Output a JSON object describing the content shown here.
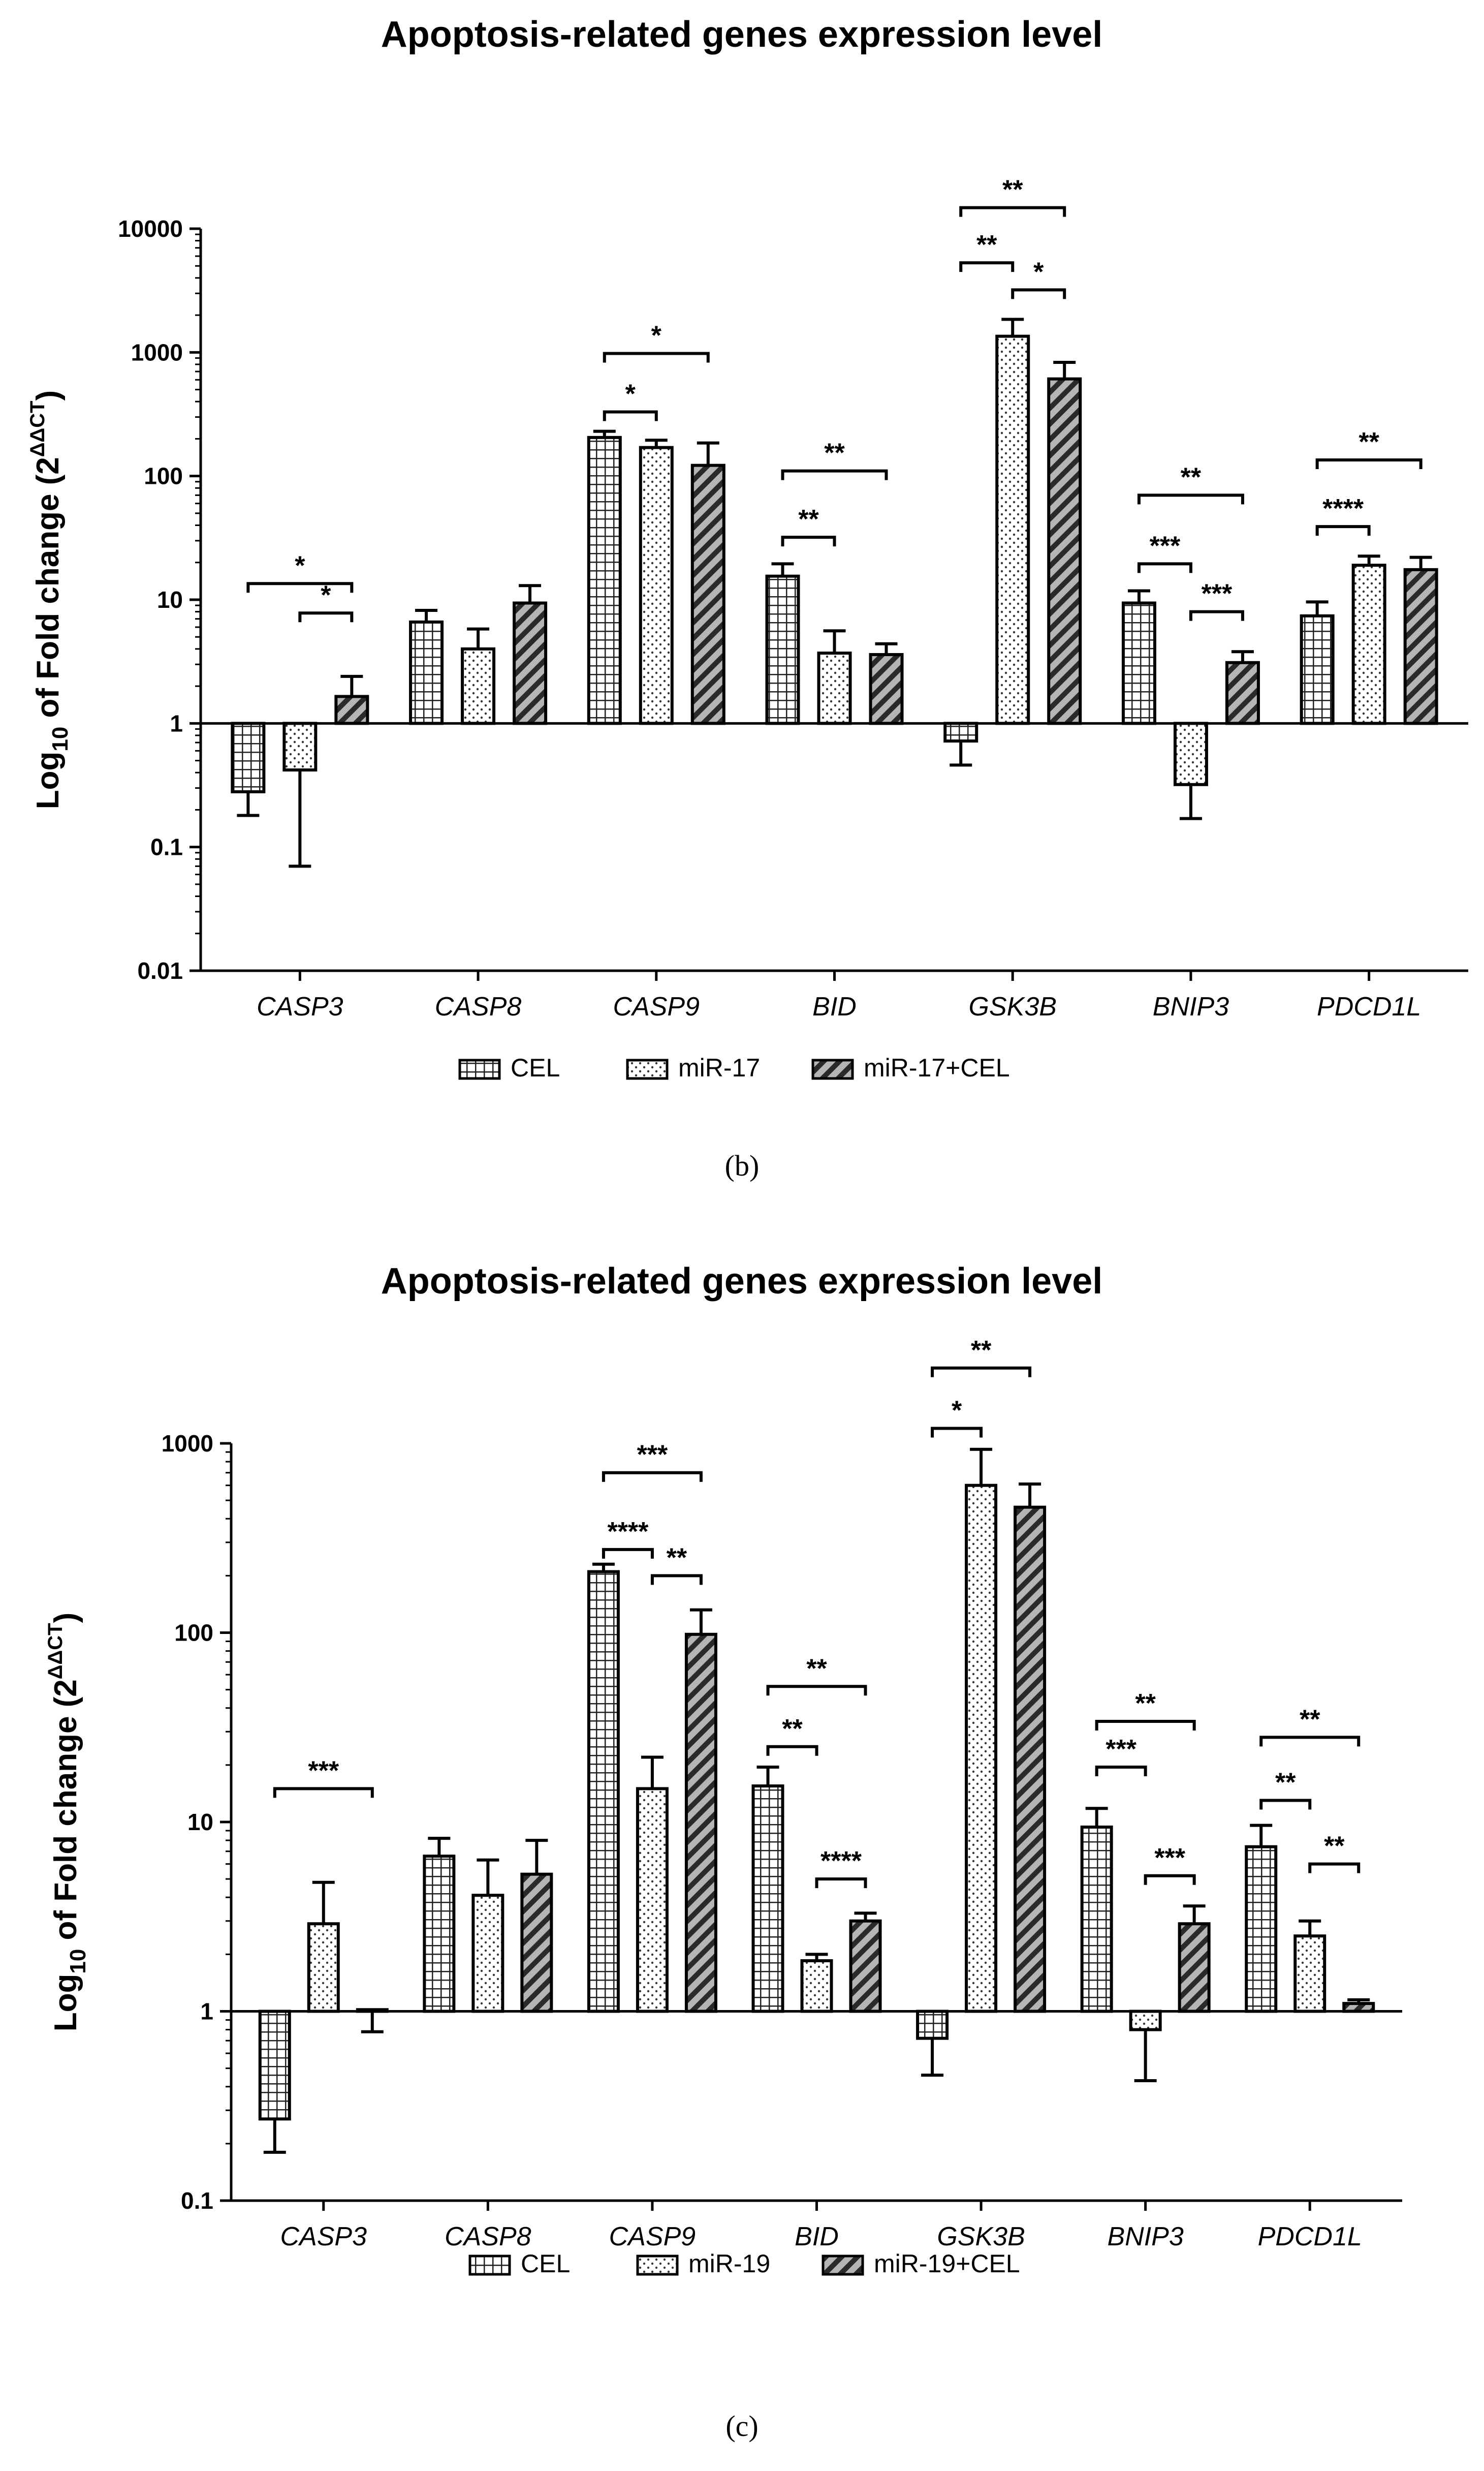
{
  "chart_data": [
    {
      "type": "bar",
      "title": "Apoptosis-related genes expression level",
      "ylabel_pre": "Log",
      "ylabel_sub": "10",
      "ylabel_mid": " of Fold change (2",
      "ylabel_sup": "ΔΔCT",
      "ylabel_post": ")",
      "yscale": "log",
      "ylim": [
        0.01,
        10000
      ],
      "yticks": [
        {
          "value": 10000,
          "label": "10000"
        },
        {
          "value": 1000,
          "label": "1000"
        },
        {
          "value": 100,
          "label": "100"
        },
        {
          "value": 10,
          "label": "10"
        },
        {
          "value": 1,
          "label": "1"
        },
        {
          "value": 0.1,
          "label": "0.1"
        },
        {
          "value": 0.01,
          "label": "0.01"
        }
      ],
      "baseline": 1,
      "categories": [
        "CASP3",
        "CASP8",
        "CASP9",
        "BID",
        "GSK3B",
        "BNIP3",
        "PDCD1L"
      ],
      "series": [
        {
          "name": "CEL",
          "pattern": "grid",
          "values": [
            0.28,
            6.6,
            205,
            15.5,
            0.72,
            9.4,
            7.4
          ],
          "err": [
            0.18,
            8.2,
            230,
            19.5,
            0.46,
            11.8,
            9.6
          ]
        },
        {
          "name": "miR-17",
          "pattern": "dots",
          "values": [
            0.42,
            4.0,
            170,
            3.7,
            1350,
            0.32,
            19
          ],
          "err": [
            0.07,
            5.8,
            195,
            5.6,
            1850,
            0.17,
            22.5
          ]
        },
        {
          "name": "miR-17+CEL",
          "pattern": "hatch",
          "values": [
            1.65,
            9.4,
            122,
            3.6,
            610,
            3.1,
            17.5
          ],
          "err": [
            2.4,
            13,
            185,
            4.4,
            830,
            3.8,
            22
          ]
        }
      ],
      "significance": [
        {
          "cat": 0,
          "from": 0,
          "to": 2,
          "y": 13.5,
          "label": "*"
        },
        {
          "cat": 0,
          "from": 1,
          "to": 2,
          "y": 7.8,
          "label": "*"
        },
        {
          "cat": 2,
          "from": 0,
          "to": 1,
          "y": 330,
          "label": "*"
        },
        {
          "cat": 2,
          "from": 0,
          "to": 2,
          "y": 980,
          "label": "*"
        },
        {
          "cat": 3,
          "from": 0,
          "to": 1,
          "y": 32,
          "label": "**"
        },
        {
          "cat": 3,
          "from": 0,
          "to": 2,
          "y": 110,
          "label": "**"
        },
        {
          "cat": 4,
          "from": 0,
          "to": 1,
          "y": 5300,
          "label": "**"
        },
        {
          "cat": 4,
          "from": 0,
          "to": 2,
          "y": 14800,
          "label": "**"
        },
        {
          "cat": 4,
          "from": 1,
          "to": 2,
          "y": 3200,
          "label": "*"
        },
        {
          "cat": 5,
          "from": 0,
          "to": 1,
          "y": 19.5,
          "label": "***"
        },
        {
          "cat": 5,
          "from": 0,
          "to": 2,
          "y": 70,
          "label": "**"
        },
        {
          "cat": 5,
          "from": 1,
          "to": 2,
          "y": 8,
          "label": "***"
        },
        {
          "cat": 6,
          "from": 0,
          "to": 1,
          "y": 39,
          "label": "****"
        },
        {
          "cat": 6,
          "from": 0,
          "to": 2,
          "y": 135,
          "label": "**"
        }
      ],
      "caption": "(b)"
    },
    {
      "type": "bar",
      "title": "Apoptosis-related genes expression level",
      "ylabel_pre": "Log",
      "ylabel_sub": "10",
      "ylabel_mid": " of Fold change (2",
      "ylabel_sup": "ΔΔCT",
      "ylabel_post": ")",
      "yscale": "log",
      "ylim": [
        0.1,
        1000
      ],
      "yticks": [
        {
          "value": 1000,
          "label": "1000"
        },
        {
          "value": 100,
          "label": "100"
        },
        {
          "value": 10,
          "label": "10"
        },
        {
          "value": 1,
          "label": "1"
        },
        {
          "value": 0.1,
          "label": "0.1"
        }
      ],
      "baseline": 1,
      "categories": [
        "CASP3",
        "CASP8",
        "CASP9",
        "BID",
        "GSK3B",
        "BNIP3",
        "PDCD1L"
      ],
      "series": [
        {
          "name": "CEL",
          "pattern": "grid",
          "values": [
            0.27,
            6.6,
            210,
            15.5,
            0.72,
            9.4,
            7.4
          ],
          "err": [
            0.18,
            8.2,
            230,
            19.5,
            0.46,
            11.8,
            9.6
          ]
        },
        {
          "name": "miR-19",
          "pattern": "dots",
          "values": [
            2.9,
            4.1,
            15,
            1.85,
            600,
            0.8,
            2.5
          ],
          "err": [
            4.8,
            6.3,
            22,
            2.0,
            930,
            0.43,
            3.0
          ]
        },
        {
          "name": "miR-19+CEL",
          "pattern": "hatch",
          "values": [
            1.02,
            5.3,
            98,
            3.0,
            460,
            2.9,
            1.1
          ],
          "err": [
            0.78,
            8.0,
            132,
            3.3,
            610,
            3.6,
            1.15
          ]
        }
      ],
      "significance": [
        {
          "cat": 0,
          "from": 0,
          "to": 2,
          "y": 15,
          "label": "***"
        },
        {
          "cat": 2,
          "from": 0,
          "to": 1,
          "y": 275,
          "label": "****"
        },
        {
          "cat": 2,
          "from": 0,
          "to": 2,
          "y": 700,
          "label": "***"
        },
        {
          "cat": 2,
          "from": 1,
          "to": 2,
          "y": 200,
          "label": "**"
        },
        {
          "cat": 3,
          "from": 0,
          "to": 1,
          "y": 25,
          "label": "**"
        },
        {
          "cat": 3,
          "from": 0,
          "to": 2,
          "y": 52,
          "label": "**"
        },
        {
          "cat": 3,
          "from": 1,
          "to": 2,
          "y": 5.0,
          "label": "****"
        },
        {
          "cat": 4,
          "from": 0,
          "to": 1,
          "y": 1200,
          "label": "*"
        },
        {
          "cat": 4,
          "from": 0,
          "to": 2,
          "y": 2500,
          "label": "**"
        },
        {
          "cat": 5,
          "from": 0,
          "to": 1,
          "y": 19.5,
          "label": "***"
        },
        {
          "cat": 5,
          "from": 0,
          "to": 2,
          "y": 34,
          "label": "**"
        },
        {
          "cat": 5,
          "from": 1,
          "to": 2,
          "y": 5.2,
          "label": "***"
        },
        {
          "cat": 6,
          "from": 0,
          "to": 1,
          "y": 13,
          "label": "**"
        },
        {
          "cat": 6,
          "from": 0,
          "to": 2,
          "y": 28,
          "label": "**"
        },
        {
          "cat": 6,
          "from": 1,
          "to": 2,
          "y": 6.0,
          "label": "**"
        }
      ],
      "caption": "(c)"
    }
  ]
}
